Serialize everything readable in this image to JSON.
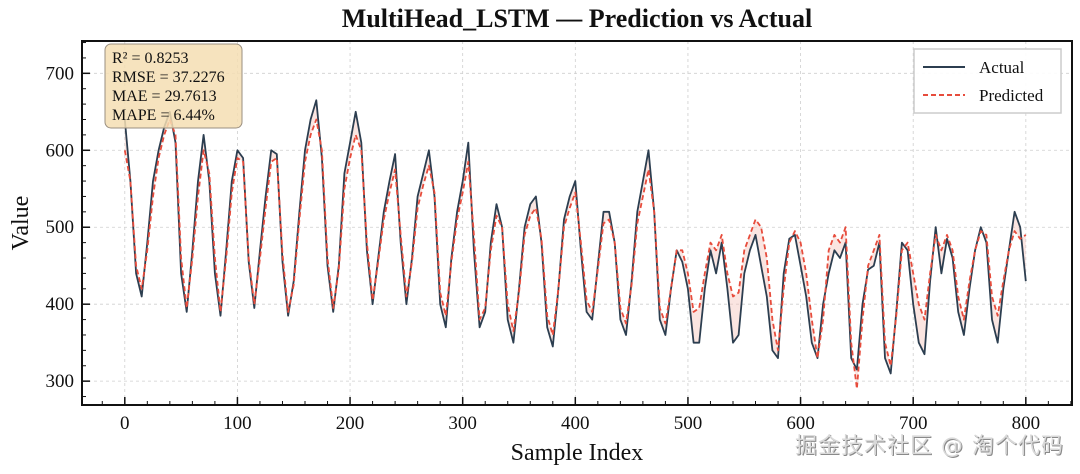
{
  "chart_data": {
    "type": "line",
    "title": "MultiHead_LSTM — Prediction vs Actual",
    "xlabel": "Sample Index",
    "ylabel": "Value",
    "xlim": [
      -38,
      841
    ],
    "ylim": [
      269,
      742
    ],
    "xticks": [
      0,
      100,
      200,
      300,
      400,
      500,
      600,
      700,
      800
    ],
    "yticks": [
      300,
      400,
      500,
      600,
      700
    ],
    "grid": true,
    "legend": {
      "placement": "top-right",
      "entries": [
        "Actual",
        "Predicted"
      ]
    },
    "colors": {
      "actual": "#2c3e50",
      "predicted": "#e74c3c",
      "fill": "#f5c6bd"
    },
    "metrics": [
      "R² = 0.8253",
      "RMSE = 37.2276",
      "MAE = 29.7613",
      "MAPE = 6.44%"
    ],
    "metrics_values": {
      "R2": 0.8253,
      "RMSE": 37.2276,
      "MAE": 29.7613,
      "MAPE_percent": 6.44
    },
    "x_step": 5,
    "x_start": 0,
    "series": [
      {
        "name": "Actual",
        "values": [
          640,
          560,
          440,
          410,
          480,
          560,
          600,
          630,
          650,
          610,
          440,
          390,
          470,
          560,
          620,
          560,
          440,
          385,
          470,
          560,
          600,
          590,
          455,
          395,
          470,
          540,
          600,
          595,
          455,
          385,
          430,
          520,
          600,
          640,
          665,
          590,
          450,
          390,
          450,
          570,
          610,
          650,
          610,
          470,
          400,
          460,
          520,
          560,
          595,
          480,
          400,
          460,
          540,
          570,
          600,
          540,
          400,
          370,
          460,
          520,
          560,
          610,
          470,
          370,
          390,
          480,
          530,
          500,
          380,
          350,
          420,
          500,
          530,
          540,
          480,
          370,
          345,
          420,
          510,
          540,
          560,
          470,
          390,
          380,
          450,
          520,
          520,
          480,
          380,
          360,
          430,
          520,
          560,
          600,
          520,
          380,
          360,
          420,
          470,
          455,
          420,
          350,
          350,
          420,
          470,
          440,
          480,
          420,
          350,
          360,
          440,
          470,
          490,
          450,
          410,
          340,
          330,
          440,
          485,
          490,
          450,
          410,
          350,
          330,
          400,
          440,
          470,
          460,
          480,
          330,
          315,
          400,
          445,
          450,
          480,
          330,
          310,
          390,
          480,
          470,
          400,
          350,
          335,
          430,
          500,
          440,
          485,
          460,
          390,
          360,
          420,
          470,
          500,
          480,
          380,
          350,
          420,
          470,
          520,
          500,
          430
        ]
      },
      {
        "name": "Predicted",
        "values": [
          600,
          560,
          450,
          420,
          470,
          540,
          590,
          620,
          640,
          620,
          460,
          395,
          460,
          540,
          600,
          570,
          460,
          390,
          460,
          545,
          590,
          585,
          460,
          400,
          460,
          525,
          585,
          590,
          465,
          390,
          425,
          510,
          585,
          620,
          640,
          600,
          460,
          395,
          445,
          550,
          590,
          620,
          600,
          480,
          405,
          455,
          510,
          545,
          575,
          490,
          410,
          455,
          525,
          555,
          580,
          545,
          415,
          385,
          455,
          510,
          545,
          585,
          490,
          380,
          395,
          470,
          515,
          500,
          400,
          365,
          415,
          490,
          515,
          525,
          485,
          385,
          360,
          420,
          500,
          525,
          545,
          480,
          405,
          390,
          445,
          505,
          510,
          480,
          395,
          375,
          425,
          505,
          540,
          575,
          520,
          395,
          375,
          420,
          470,
          470,
          440,
          390,
          395,
          440,
          480,
          470,
          490,
          440,
          410,
          415,
          470,
          490,
          510,
          500,
          460,
          380,
          340,
          420,
          480,
          495,
          480,
          440,
          380,
          330,
          380,
          470,
          490,
          480,
          500,
          350,
          290,
          380,
          450,
          470,
          490,
          350,
          320,
          385,
          470,
          480,
          440,
          400,
          380,
          440,
          490,
          470,
          490,
          470,
          410,
          380,
          430,
          470,
          495,
          490,
          410,
          385,
          430,
          470,
          495,
          485,
          490
        ]
      }
    ]
  },
  "watermark": "掘金技术社区 @ 淘个代码"
}
